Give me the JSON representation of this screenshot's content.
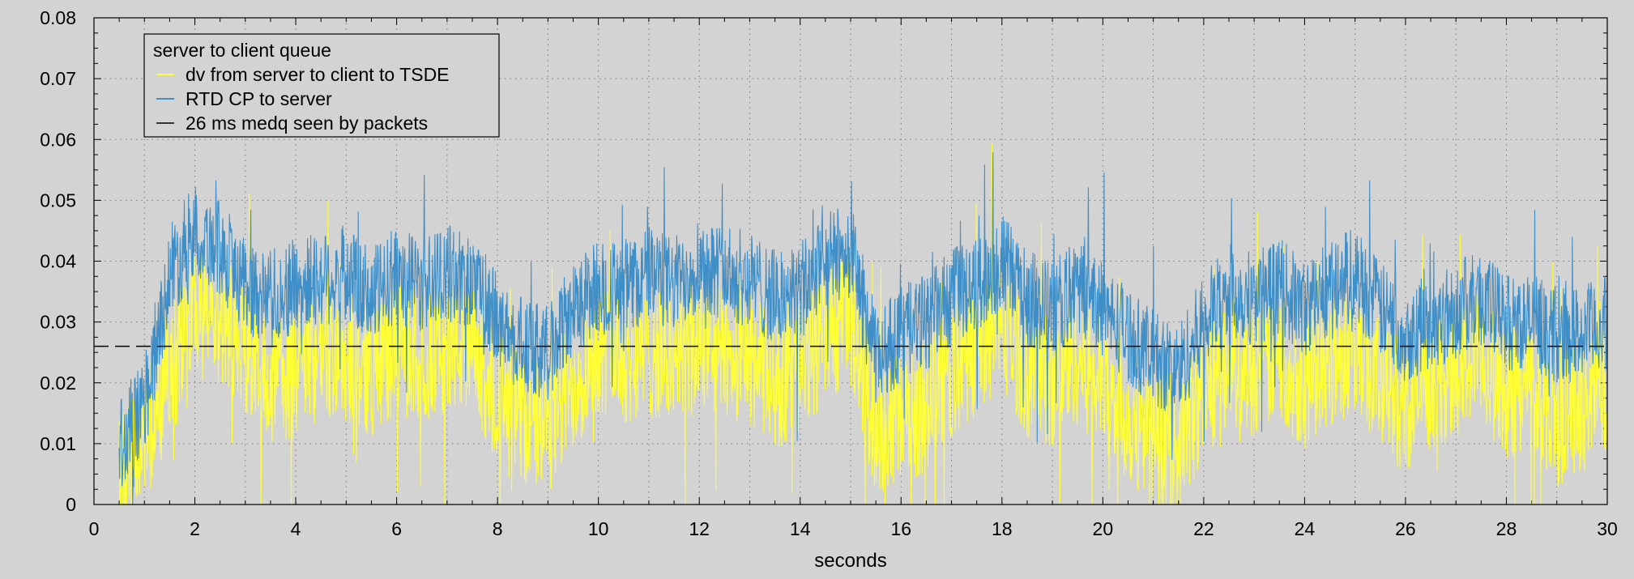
{
  "chart_data": {
    "type": "line",
    "title": "",
    "xlabel": "seconds",
    "ylabel": "",
    "xlim": [
      0,
      30
    ],
    "ylim": [
      0,
      0.08
    ],
    "x_ticks": [
      "0",
      "2",
      "4",
      "6",
      "8",
      "10",
      "12",
      "14",
      "16",
      "18",
      "20",
      "22",
      "24",
      "26",
      "28",
      "30"
    ],
    "y_ticks": [
      "0",
      "0.01",
      "0.02",
      "0.03",
      "0.04",
      "0.05",
      "0.06",
      "0.07",
      "0.08"
    ],
    "grid": true,
    "legend_position": "top-left",
    "legend_title": "server to client queue",
    "series": [
      {
        "name": "dv from server to client to TSDE",
        "color": "#ffff33",
        "style": "solid",
        "x": [
          0.5,
          1,
          1.5,
          2,
          2.5,
          3,
          3.5,
          4,
          4.5,
          5,
          5.5,
          6,
          6.5,
          7,
          7.5,
          8,
          8.5,
          9,
          9.5,
          10,
          10.5,
          11,
          11.5,
          12,
          12.5,
          13,
          13.5,
          14,
          14.5,
          15,
          15.5,
          16,
          16.5,
          17,
          17.5,
          18,
          18.5,
          19,
          19.5,
          20,
          20.5,
          21,
          21.5,
          22,
          22.5,
          23,
          23.5,
          24,
          24.5,
          25,
          25.5,
          26,
          26.5,
          27,
          27.5,
          28,
          28.5,
          29,
          29.5,
          30
        ],
        "values": [
          0.004,
          0.01,
          0.022,
          0.032,
          0.03,
          0.026,
          0.02,
          0.022,
          0.025,
          0.024,
          0.022,
          0.026,
          0.024,
          0.026,
          0.025,
          0.018,
          0.014,
          0.012,
          0.02,
          0.026,
          0.024,
          0.025,
          0.024,
          0.026,
          0.025,
          0.024,
          0.02,
          0.022,
          0.028,
          0.03,
          0.012,
          0.014,
          0.016,
          0.022,
          0.025,
          0.03,
          0.022,
          0.02,
          0.024,
          0.02,
          0.014,
          0.012,
          0.01,
          0.018,
          0.024,
          0.022,
          0.024,
          0.02,
          0.024,
          0.026,
          0.02,
          0.016,
          0.02,
          0.022,
          0.024,
          0.018,
          0.02,
          0.014,
          0.016,
          0.02
        ]
      },
      {
        "name": "RTD CP to server",
        "color": "#3e8ec7",
        "style": "solid",
        "x": [
          0.5,
          1,
          1.5,
          2,
          2.5,
          3,
          3.5,
          4,
          4.5,
          5,
          5.5,
          6,
          6.5,
          7,
          7.5,
          8,
          8.5,
          9,
          9.5,
          10,
          10.5,
          11,
          11.5,
          12,
          12.5,
          13,
          13.5,
          14,
          14.5,
          15,
          15.5,
          16,
          16.5,
          17,
          17.5,
          18,
          18.5,
          19,
          19.5,
          20,
          20.5,
          21,
          21.5,
          22,
          22.5,
          23,
          23.5,
          24,
          24.5,
          25,
          25.5,
          26,
          26.5,
          27,
          27.5,
          28,
          28.5,
          29,
          29.5,
          30
        ],
        "values": [
          0.01,
          0.016,
          0.038,
          0.045,
          0.042,
          0.036,
          0.034,
          0.036,
          0.037,
          0.038,
          0.034,
          0.038,
          0.036,
          0.038,
          0.037,
          0.03,
          0.026,
          0.025,
          0.032,
          0.036,
          0.035,
          0.038,
          0.036,
          0.04,
          0.038,
          0.037,
          0.034,
          0.035,
          0.04,
          0.042,
          0.024,
          0.028,
          0.03,
          0.034,
          0.036,
          0.04,
          0.034,
          0.032,
          0.036,
          0.032,
          0.028,
          0.024,
          0.022,
          0.03,
          0.035,
          0.034,
          0.036,
          0.032,
          0.036,
          0.038,
          0.032,
          0.028,
          0.03,
          0.032,
          0.034,
          0.03,
          0.03,
          0.028,
          0.028,
          0.03
        ]
      },
      {
        "name": "26 ms medq seen by packets",
        "color": "#000000",
        "style": "dashed",
        "x": [
          0,
          30
        ],
        "values": [
          0.026,
          0.026
        ]
      }
    ]
  }
}
